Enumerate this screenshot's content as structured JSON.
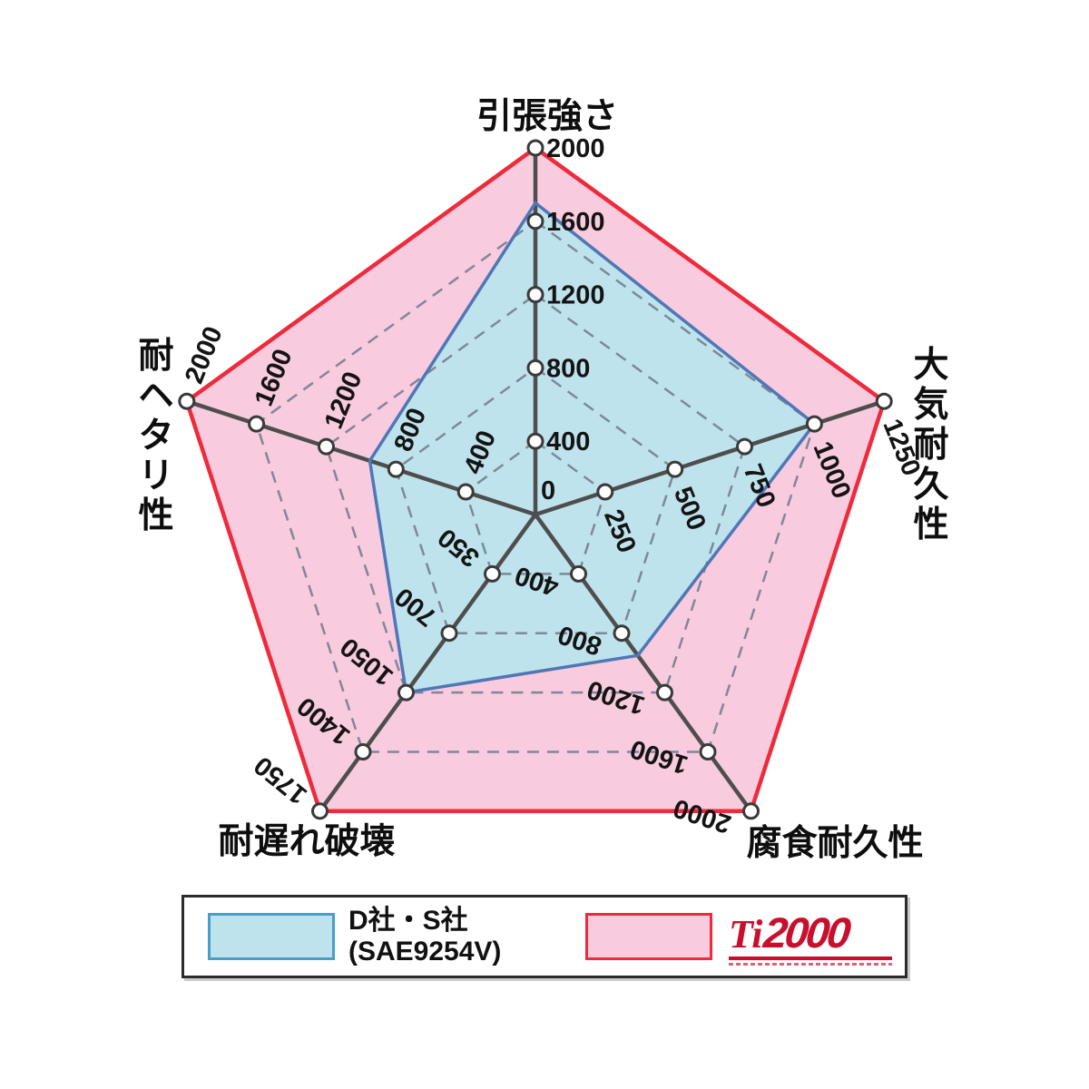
{
  "chart_data": {
    "type": "radar",
    "axes": [
      {
        "label": "引張強さ",
        "max": 2000,
        "ticks": [
          400,
          800,
          1200,
          1600,
          2000
        ]
      },
      {
        "label": "大気耐久性",
        "max": 1250,
        "ticks": [
          250,
          500,
          750,
          1000,
          1250
        ]
      },
      {
        "label": "腐食耐久性",
        "max": 2000,
        "ticks": [
          400,
          800,
          1200,
          1600,
          2000
        ]
      },
      {
        "label": "耐遅れ破壊",
        "max": 1750,
        "ticks": [
          350,
          700,
          1050,
          1400,
          1750
        ]
      },
      {
        "label": "耐ヘタリ性",
        "max": 2000,
        "ticks": [
          400,
          800,
          1200,
          1600,
          2000
        ]
      }
    ],
    "center_label": "0",
    "series": [
      {
        "name": "Ti2000",
        "values": [
          2000,
          1250,
          2000,
          1750,
          2000
        ],
        "fill": "#F8CBDF",
        "stroke": "#EE2B3C"
      },
      {
        "name": "D社・S社 (SAE9254V)",
        "values": [
          1700,
          1000,
          950,
          1050,
          950
        ],
        "fill": "#BFE3EC",
        "stroke": "#4F77B5"
      }
    ],
    "grid": {
      "ring_fractions": [
        0.2,
        0.4,
        0.6,
        0.8
      ],
      "dashed": true
    },
    "legend_position": "bottom"
  },
  "legend": {
    "items": [
      {
        "label_line1": "D社・S社",
        "label_line2": "(SAE9254V)",
        "swatch_fill": "#BFE3EC",
        "swatch_border": "#4A9CC9"
      },
      {
        "logo_ti": "Ti",
        "logo_num": "2000",
        "swatch_fill": "#F8CBDF",
        "swatch_border": "#EE2B3C",
        "logo_color": "#C8102E"
      }
    ]
  },
  "colors": {
    "background": "#FFFFFF",
    "axis": "#4E4E4E",
    "grid": "#6E7A89",
    "tick_marker_fill": "#FFFFFF",
    "tick_marker_stroke": "#3A3A3A"
  }
}
